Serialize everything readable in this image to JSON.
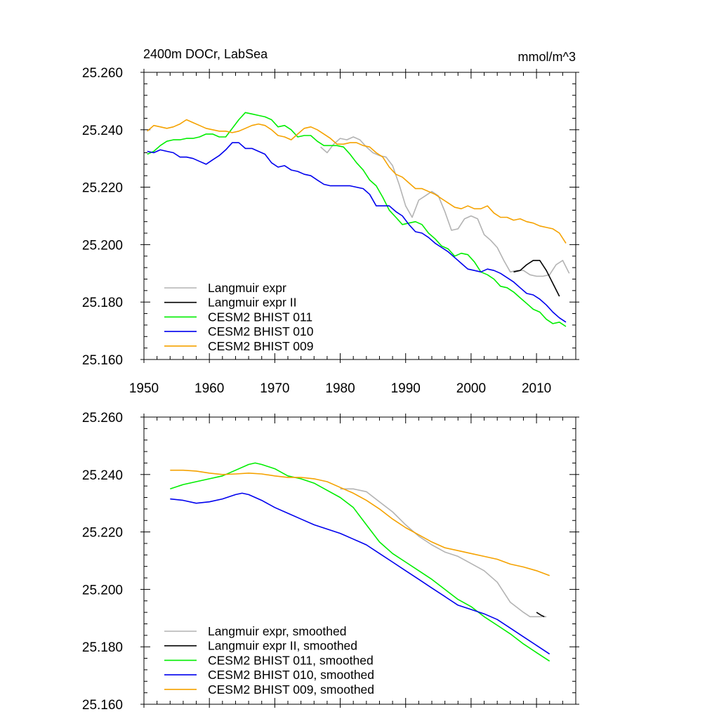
{
  "chart_data": [
    {
      "type": "line",
      "title": "2400m DOCr, LabSea",
      "units": "mmol/m^3",
      "xlabel": "",
      "ylabel": "",
      "xlim": [
        1950,
        2016
      ],
      "ylim": [
        25.16,
        25.26
      ],
      "xticks": [
        1950,
        1960,
        1970,
        1980,
        1990,
        2000,
        2010
      ],
      "xtick_labels": [
        "1950",
        "1960",
        "1970",
        "1980",
        "1990",
        "2000",
        "2010"
      ],
      "yticks": [
        25.16,
        25.18,
        25.2,
        25.22,
        25.24,
        25.26
      ],
      "ytick_labels": [
        "25.160",
        "25.180",
        "25.200",
        "25.220",
        "25.240",
        "25.260"
      ],
      "legend_position": "bottom-left",
      "series": [
        {
          "name": "Langmuir expr",
          "color": "#b3b3b3",
          "x": [
            1977,
            1978,
            1979,
            1980,
            1981,
            1982,
            1983,
            1984,
            1985,
            1986,
            1987,
            1988,
            1989,
            1990,
            1991,
            1992,
            1993,
            1994,
            1995,
            1996,
            1997,
            1998,
            1999,
            2000,
            2001,
            2002,
            2003,
            2004,
            2005,
            2006,
            2007,
            2008,
            2009,
            2010,
            2011,
            2012,
            2013,
            2014,
            2015
          ],
          "y": [
            25.234,
            25.232,
            25.235,
            25.237,
            25.2365,
            25.2375,
            25.2365,
            25.234,
            25.232,
            25.231,
            25.2305,
            25.2275,
            25.221,
            25.2135,
            25.2095,
            25.2155,
            25.217,
            25.2185,
            25.217,
            25.2115,
            25.205,
            25.2055,
            25.209,
            25.21,
            25.209,
            25.2035,
            25.2015,
            25.199,
            25.1945,
            25.1905,
            25.191,
            25.191,
            25.1895,
            25.189,
            25.189,
            25.1895,
            25.193,
            25.1945,
            25.19
          ]
        },
        {
          "name": "Langmuir expr II",
          "color": "#000000",
          "x": [
            2006.5,
            2007.5,
            2008.5,
            2009.5,
            2010.5,
            2011.5,
            2012.5,
            2013.5
          ],
          "y": [
            25.1905,
            25.191,
            25.193,
            25.1945,
            25.1945,
            25.191,
            25.1865,
            25.182
          ]
        },
        {
          "name": "CESM2 BHIST 011",
          "color": "#00ee00",
          "x": [
            1950.5,
            1951.5,
            1952.5,
            1953.5,
            1954.5,
            1955.5,
            1956.5,
            1957.5,
            1958.5,
            1959.5,
            1960.5,
            1961.5,
            1962.5,
            1963.5,
            1964.5,
            1965.5,
            1966.5,
            1967.5,
            1968.5,
            1969.5,
            1970.5,
            1971.5,
            1972.5,
            1973.5,
            1974.5,
            1975.5,
            1976.5,
            1977.5,
            1978.5,
            1979.5,
            1980.5,
            1981.5,
            1982.5,
            1983.5,
            1984.5,
            1985.5,
            1986.5,
            1987.5,
            1988.5,
            1989.5,
            1990.5,
            1991.5,
            1992.5,
            1993.5,
            1994.5,
            1995.5,
            1996.5,
            1997.5,
            1998.5,
            1999.5,
            2000.5,
            2001.5,
            2002.5,
            2003.5,
            2004.5,
            2005.5,
            2006.5,
            2007.5,
            2008.5,
            2009.5,
            2010.5,
            2011.5,
            2012.5,
            2013.5,
            2014.5
          ],
          "y": [
            25.2315,
            25.2325,
            25.2345,
            25.236,
            25.2365,
            25.2365,
            25.237,
            25.237,
            25.2375,
            25.2385,
            25.2385,
            25.2375,
            25.2375,
            25.2405,
            25.2435,
            25.246,
            25.2455,
            25.245,
            25.2445,
            25.2435,
            25.241,
            25.2415,
            25.24,
            25.2375,
            25.238,
            25.238,
            25.236,
            25.2345,
            25.2345,
            25.2345,
            25.234,
            25.2315,
            25.2285,
            25.226,
            25.2225,
            25.2205,
            25.2165,
            25.212,
            25.2095,
            25.207,
            25.2075,
            25.208,
            25.207,
            25.204,
            25.202,
            25.1995,
            25.1985,
            25.196,
            25.197,
            25.1965,
            25.194,
            25.1905,
            25.1895,
            25.188,
            25.1855,
            25.185,
            25.1835,
            25.1815,
            25.1795,
            25.1775,
            25.1765,
            25.174,
            25.1725,
            25.173,
            25.1715
          ]
        },
        {
          "name": "CESM2 BHIST 010",
          "color": "#0000ee",
          "x": [
            1950.5,
            1951.5,
            1952.5,
            1953.5,
            1954.5,
            1955.5,
            1956.5,
            1957.5,
            1958.5,
            1959.5,
            1960.5,
            1961.5,
            1962.5,
            1963.5,
            1964.5,
            1965.5,
            1966.5,
            1967.5,
            1968.5,
            1969.5,
            1970.5,
            1971.5,
            1972.5,
            1973.5,
            1974.5,
            1975.5,
            1976.5,
            1977.5,
            1978.5,
            1979.5,
            1980.5,
            1981.5,
            1982.5,
            1983.5,
            1984.5,
            1985.5,
            1986.5,
            1987.5,
            1988.5,
            1989.5,
            1990.5,
            1991.5,
            1992.5,
            1993.5,
            1994.5,
            1995.5,
            1996.5,
            1997.5,
            1998.5,
            1999.5,
            2000.5,
            2001.5,
            2002.5,
            2003.5,
            2004.5,
            2005.5,
            2006.5,
            2007.5,
            2008.5,
            2009.5,
            2010.5,
            2011.5,
            2012.5,
            2013.5,
            2014.5
          ],
          "y": [
            25.2325,
            25.232,
            25.233,
            25.2325,
            25.232,
            25.2305,
            25.2305,
            25.23,
            25.229,
            25.228,
            25.2295,
            25.231,
            25.233,
            25.2355,
            25.2355,
            25.2335,
            25.2335,
            25.2325,
            25.2315,
            25.2285,
            25.227,
            25.2275,
            25.226,
            25.2255,
            25.2245,
            25.224,
            25.2225,
            25.221,
            25.2205,
            25.2205,
            25.2205,
            25.2205,
            25.22,
            25.2195,
            25.2175,
            25.2135,
            25.2135,
            25.2135,
            25.2115,
            25.21,
            25.207,
            25.2045,
            25.204,
            25.2025,
            25.2005,
            25.199,
            25.1975,
            25.1955,
            25.1935,
            25.1915,
            25.191,
            25.1905,
            25.1915,
            25.191,
            25.19,
            25.1885,
            25.187,
            25.185,
            25.183,
            25.1825,
            25.181,
            25.179,
            25.1765,
            25.1745,
            25.173
          ]
        },
        {
          "name": "CESM2 BHIST 009",
          "color": "#f5a200",
          "x": [
            1950.5,
            1951.5,
            1952.5,
            1953.5,
            1954.5,
            1955.5,
            1956.5,
            1957.5,
            1958.5,
            1959.5,
            1960.5,
            1961.5,
            1962.5,
            1963.5,
            1964.5,
            1965.5,
            1966.5,
            1967.5,
            1968.5,
            1969.5,
            1970.5,
            1971.5,
            1972.5,
            1973.5,
            1974.5,
            1975.5,
            1976.5,
            1977.5,
            1978.5,
            1979.5,
            1980.5,
            1981.5,
            1982.5,
            1983.5,
            1984.5,
            1985.5,
            1986.5,
            1987.5,
            1988.5,
            1989.5,
            1990.5,
            1991.5,
            1992.5,
            1993.5,
            1994.5,
            1995.5,
            1996.5,
            1997.5,
            1998.5,
            1999.5,
            2000.5,
            2001.5,
            2002.5,
            2003.5,
            2004.5,
            2005.5,
            2006.5,
            2007.5,
            2008.5,
            2009.5,
            2010.5,
            2011.5,
            2012.5,
            2013.5,
            2014.5
          ],
          "y": [
            25.2395,
            25.2415,
            25.241,
            25.2405,
            25.241,
            25.242,
            25.2435,
            25.2425,
            25.2415,
            25.2405,
            25.24,
            25.2395,
            25.2395,
            25.239,
            25.2395,
            25.2405,
            25.2415,
            25.242,
            25.2415,
            25.24,
            25.238,
            25.2375,
            25.2365,
            25.2385,
            25.2405,
            25.241,
            25.24,
            25.2385,
            25.237,
            25.235,
            25.235,
            25.2355,
            25.2355,
            25.2345,
            25.234,
            25.232,
            25.2305,
            25.227,
            25.2245,
            25.2235,
            25.2215,
            25.2195,
            25.2195,
            25.2185,
            25.2175,
            25.216,
            25.2145,
            25.213,
            25.2125,
            25.2135,
            25.2125,
            25.2125,
            25.2135,
            25.211,
            25.2095,
            25.2095,
            25.2085,
            25.209,
            25.208,
            25.2075,
            25.2065,
            25.206,
            25.2055,
            25.204,
            25.2005
          ]
        }
      ]
    },
    {
      "type": "line",
      "title": "",
      "xlabel": "",
      "ylabel": "",
      "xlim": [
        1950,
        2016
      ],
      "ylim": [
        25.16,
        25.26
      ],
      "xticks": [
        1950,
        1960,
        1970,
        1980,
        1990,
        2000,
        2010
      ],
      "yticks": [
        25.16,
        25.18,
        25.2,
        25.22,
        25.24,
        25.26
      ],
      "ytick_labels": [
        "25.160",
        "25.180",
        "25.200",
        "25.220",
        "25.240",
        "25.260"
      ],
      "legend_position": "bottom-left",
      "series": [
        {
          "name": "Langmuir expr, smoothed",
          "color": "#b3b3b3",
          "x": [
            1980,
            1982,
            1984,
            1986,
            1988,
            1990,
            1992,
            1994,
            1996,
            1998,
            2000,
            2002,
            2004,
            2006,
            2008,
            2009,
            2010,
            2011.5
          ],
          "y": [
            25.235,
            25.235,
            25.234,
            25.2305,
            25.227,
            25.2225,
            25.2185,
            25.2155,
            25.213,
            25.2115,
            25.209,
            25.2065,
            25.2025,
            25.1955,
            25.192,
            25.1905,
            25.1905,
            25.1905
          ]
        },
        {
          "name": "Langmuir expr II, smoothed",
          "color": "#000000",
          "x": [
            2010,
            2010.7,
            2011.2
          ],
          "y": [
            25.192,
            25.191,
            25.1905
          ]
        },
        {
          "name": "CESM2 BHIST 011, smoothed",
          "color": "#00ee00",
          "x": [
            1954,
            1956,
            1958,
            1960,
            1962,
            1964,
            1966,
            1967,
            1968,
            1970,
            1972,
            1974,
            1976,
            1978,
            1980,
            1982,
            1984,
            1986,
            1988,
            1990,
            1992,
            1994,
            1996,
            1998,
            2000,
            2002,
            2004,
            2006,
            2008,
            2010,
            2012
          ],
          "y": [
            25.235,
            25.2365,
            25.2375,
            25.2385,
            25.2395,
            25.2415,
            25.2435,
            25.244,
            25.2435,
            25.242,
            25.2395,
            25.2385,
            25.237,
            25.2345,
            25.232,
            25.2285,
            25.2225,
            25.2165,
            25.2125,
            25.2095,
            25.2065,
            25.2035,
            25.2,
            25.1965,
            25.194,
            25.1905,
            25.1875,
            25.1845,
            25.181,
            25.178,
            25.175
          ]
        },
        {
          "name": "CESM2 BHIST 010, smoothed",
          "color": "#0000ee",
          "x": [
            1954,
            1956,
            1958,
            1960,
            1962,
            1964,
            1965,
            1966,
            1968,
            1970,
            1972,
            1974,
            1976,
            1978,
            1980,
            1982,
            1984,
            1986,
            1988,
            1990,
            1992,
            1994,
            1996,
            1998,
            2000,
            2002,
            2004,
            2006,
            2008,
            2010,
            2012
          ],
          "y": [
            25.2315,
            25.231,
            25.23,
            25.2305,
            25.2315,
            25.233,
            25.2335,
            25.233,
            25.231,
            25.2285,
            25.2265,
            25.2245,
            25.2225,
            25.221,
            25.2195,
            25.2175,
            25.2155,
            25.2125,
            25.2095,
            25.2065,
            25.2035,
            25.2005,
            25.1975,
            25.1945,
            25.193,
            25.1915,
            25.1895,
            25.1865,
            25.1835,
            25.1805,
            25.1775
          ]
        },
        {
          "name": "CESM2 BHIST 009, smoothed",
          "color": "#f5a200",
          "x": [
            1954,
            1956,
            1958,
            1960,
            1962,
            1964,
            1966,
            1968,
            1970,
            1972,
            1974,
            1976,
            1978,
            1980,
            1982,
            1984,
            1986,
            1988,
            1990,
            1992,
            1994,
            1996,
            1998,
            2000,
            2002,
            2004,
            2006,
            2008,
            2010,
            2012
          ],
          "y": [
            25.2415,
            25.2415,
            25.2412,
            25.2405,
            25.24,
            25.2402,
            25.2405,
            25.2402,
            25.2395,
            25.239,
            25.239,
            25.2385,
            25.2375,
            25.2355,
            25.2335,
            25.231,
            25.228,
            25.2245,
            25.2215,
            25.219,
            25.2165,
            25.2145,
            25.2135,
            25.2125,
            25.2115,
            25.2105,
            25.2088,
            25.2078,
            25.2065,
            25.2048
          ]
        }
      ]
    }
  ]
}
